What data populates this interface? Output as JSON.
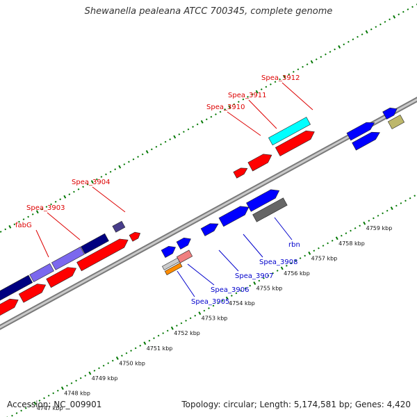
{
  "title": "Shewanella pealeana ATCC 700345, complete genome",
  "footer": {
    "accession": "Accession: NC_009901",
    "topology": "Topology: circular; Length: 5,174,581 bp; Genes: 4,420"
  },
  "ticks": [
    "4747 kbp",
    "4748 kbp",
    "4749 kbp",
    "4750 kbp",
    "4751 kbp",
    "4752 kbp",
    "4753 kbp",
    "4754 kbp",
    "4755 kbp",
    "4756 kbp",
    "4757 kbp",
    "4758 kbp",
    "4759 kbp"
  ],
  "genes_top": [
    "fabG",
    "Spea_3903",
    "Spea_3904",
    "Spea_3910",
    "Spea_3911",
    "Spea_3912"
  ],
  "genes_bottom": [
    "Spea_3905",
    "Spea_3906",
    "Spea_3907",
    "Spea_3908",
    "rbn"
  ],
  "colors": {
    "red": "#ff0000",
    "blue": "#0000ff",
    "navy": "#000080",
    "slate": "#483d8b",
    "lavender": "#7b68ee",
    "cyan": "#00ffff",
    "gray": "#666666",
    "pink": "#f08080",
    "orange": "#ff8c00",
    "khaki": "#bdb76b",
    "backbone": "#999999",
    "tick_green": "#007700"
  }
}
